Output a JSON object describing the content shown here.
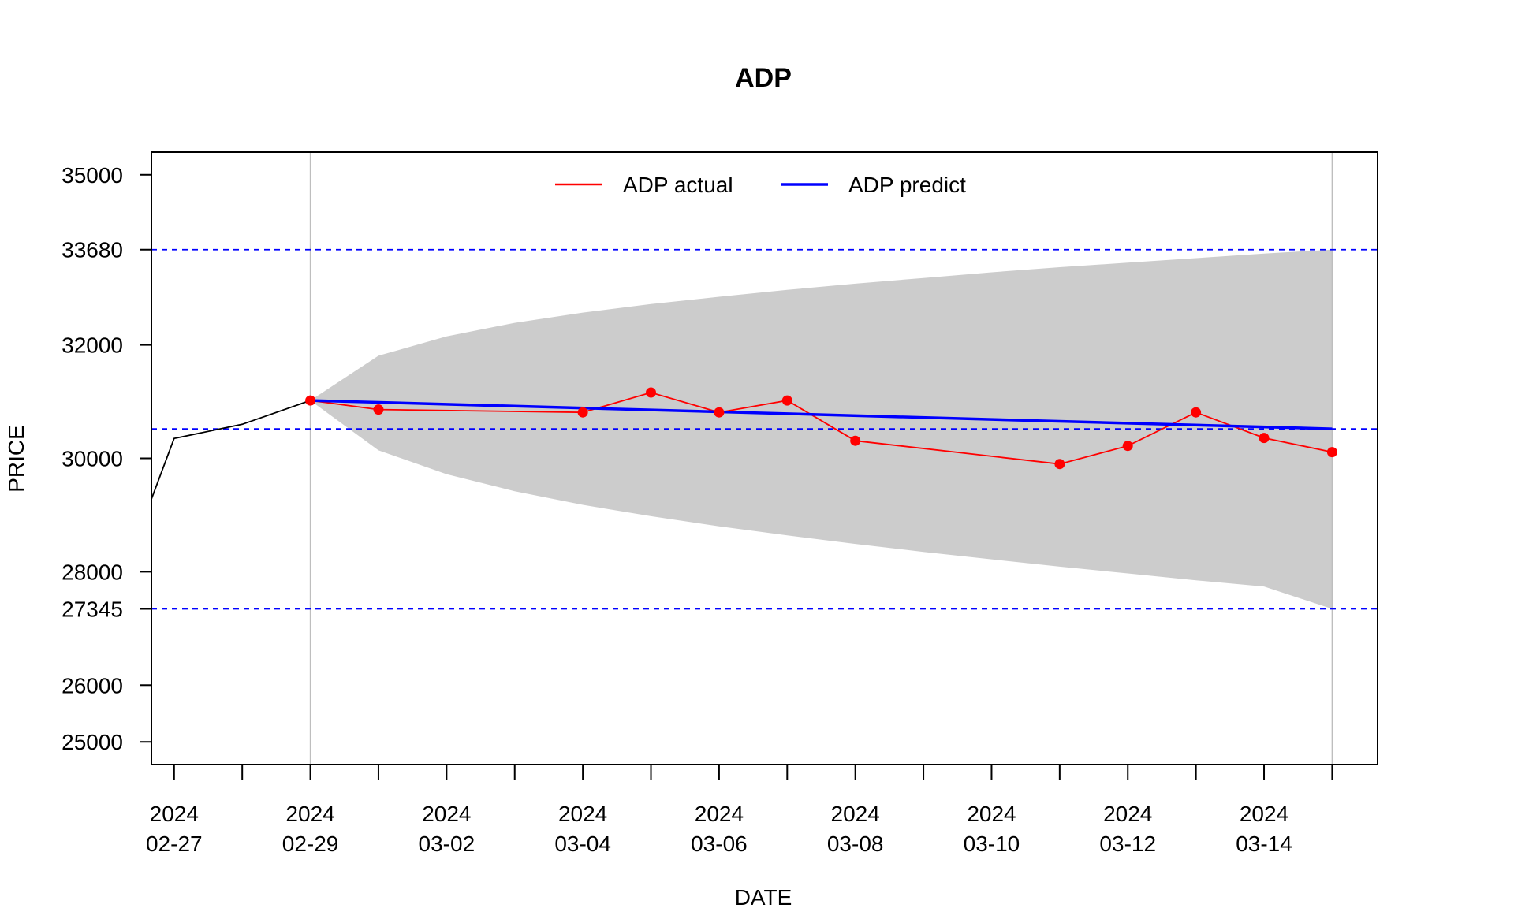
{
  "chart_data": {
    "type": "line",
    "title": "ADP",
    "xlabel": "DATE",
    "ylabel": "PRICE",
    "ylim": [
      24600,
      35400
    ],
    "xlim": [
      "2024-02-26 16:00",
      "2024-03-15 16:00"
    ],
    "y_ticks": [
      25000,
      26000,
      27345,
      28000,
      30000,
      32000,
      33680,
      35000
    ],
    "y_tick_labels": [
      "25000",
      "26000",
      "27345",
      "28000",
      "30000",
      "32000",
      "33680",
      "35000"
    ],
    "x_major_ticks": [
      {
        "date": "2024-02-27",
        "label_year": "2024",
        "label_md": "02-27"
      },
      {
        "date": "2024-02-29",
        "label_year": "2024",
        "label_md": "02-29"
      },
      {
        "date": "2024-03-02",
        "label_year": "2024",
        "label_md": "03-02"
      },
      {
        "date": "2024-03-04",
        "label_year": "2024",
        "label_md": "03-04"
      },
      {
        "date": "2024-03-06",
        "label_year": "2024",
        "label_md": "03-06"
      },
      {
        "date": "2024-03-08",
        "label_year": "2024",
        "label_md": "03-08"
      },
      {
        "date": "2024-03-10",
        "label_year": "2024",
        "label_md": "03-10"
      },
      {
        "date": "2024-03-12",
        "label_year": "2024",
        "label_md": "03-12"
      },
      {
        "date": "2024-03-14",
        "label_year": "2024",
        "label_md": "03-14"
      }
    ],
    "x_minor_ticks": [
      "2024-02-28",
      "2024-03-01",
      "2024-03-03",
      "2024-03-05",
      "2024-03-07",
      "2024-03-09",
      "2024-03-11",
      "2024-03-13",
      "2024-03-15"
    ],
    "vertical_reference_lines": [
      "2024-02-29",
      "2024-03-15"
    ],
    "horizontal_reference_lines": [
      33680,
      30520,
      27345
    ],
    "legend": {
      "placement": "top-center",
      "entries": [
        {
          "label": "ADP actual",
          "color": "#ff0000"
        },
        {
          "label": "ADP predict",
          "color": "#0000ff"
        }
      ]
    },
    "history": {
      "color": "#000000",
      "points": [
        {
          "x": "2024-02-26 16:00",
          "y": 29280
        },
        {
          "x": "2024-02-27",
          "y": 30350
        },
        {
          "x": "2024-02-28",
          "y": 30600
        },
        {
          "x": "2024-02-29",
          "y": 31020
        }
      ]
    },
    "series": [
      {
        "name": "ADP actual",
        "color": "#ff0000",
        "points": [
          {
            "x": "2024-02-29",
            "y": 31020
          },
          {
            "x": "2024-03-01",
            "y": 30860
          },
          {
            "x": "2024-03-04",
            "y": 30810
          },
          {
            "x": "2024-03-05",
            "y": 31160
          },
          {
            "x": "2024-03-06",
            "y": 30810
          },
          {
            "x": "2024-03-07",
            "y": 31020
          },
          {
            "x": "2024-03-08",
            "y": 30310
          },
          {
            "x": "2024-03-11",
            "y": 29900
          },
          {
            "x": "2024-03-12",
            "y": 30220
          },
          {
            "x": "2024-03-13",
            "y": 30810
          },
          {
            "x": "2024-03-14",
            "y": 30360
          },
          {
            "x": "2024-03-15",
            "y": 30110
          }
        ]
      },
      {
        "name": "ADP predict",
        "color": "#0000ff",
        "points": [
          {
            "x": "2024-02-29",
            "y": 31020
          },
          {
            "x": "2024-03-15",
            "y": 30520
          }
        ]
      }
    ],
    "prediction_band": {
      "color": "#cccccc",
      "upper": [
        {
          "x": "2024-02-29",
          "y": 31020
        },
        {
          "x": "2024-03-01",
          "y": 31810
        },
        {
          "x": "2024-03-02",
          "y": 32150
        },
        {
          "x": "2024-03-03",
          "y": 32390
        },
        {
          "x": "2024-03-04",
          "y": 32570
        },
        {
          "x": "2024-03-05",
          "y": 32720
        },
        {
          "x": "2024-03-06",
          "y": 32850
        },
        {
          "x": "2024-03-07",
          "y": 32970
        },
        {
          "x": "2024-03-08",
          "y": 33080
        },
        {
          "x": "2024-03-09",
          "y": 33180
        },
        {
          "x": "2024-03-10",
          "y": 33280
        },
        {
          "x": "2024-03-11",
          "y": 33370
        },
        {
          "x": "2024-03-12",
          "y": 33450
        },
        {
          "x": "2024-03-13",
          "y": 33530
        },
        {
          "x": "2024-03-14",
          "y": 33610
        },
        {
          "x": "2024-03-15",
          "y": 33680
        }
      ],
      "lower": [
        {
          "x": "2024-02-29",
          "y": 31020
        },
        {
          "x": "2024-03-01",
          "y": 30140
        },
        {
          "x": "2024-03-02",
          "y": 29720
        },
        {
          "x": "2024-03-03",
          "y": 29420
        },
        {
          "x": "2024-03-04",
          "y": 29180
        },
        {
          "x": "2024-03-05",
          "y": 28980
        },
        {
          "x": "2024-03-06",
          "y": 28800
        },
        {
          "x": "2024-03-07",
          "y": 28640
        },
        {
          "x": "2024-03-08",
          "y": 28490
        },
        {
          "x": "2024-03-09",
          "y": 28350
        },
        {
          "x": "2024-03-10",
          "y": 28220
        },
        {
          "x": "2024-03-11",
          "y": 28090
        },
        {
          "x": "2024-03-12",
          "y": 27970
        },
        {
          "x": "2024-03-13",
          "y": 27850
        },
        {
          "x": "2024-03-14",
          "y": 27740
        },
        {
          "x": "2024-03-15",
          "y": 27345
        }
      ]
    },
    "colors": {
      "axis": "#000000",
      "reference_vertical": "#bebebe",
      "reference_horizontal": "#0000ff",
      "history": "#000000"
    }
  }
}
